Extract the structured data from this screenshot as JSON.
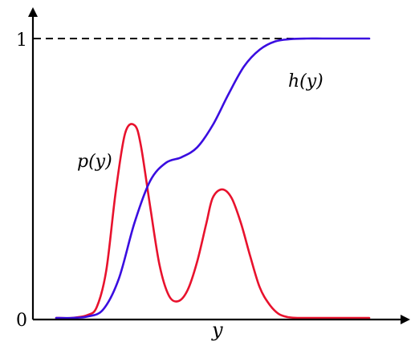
{
  "chart_data": {
    "type": "line",
    "title": "",
    "xlabel": "y",
    "ylabel": "",
    "y_ticks": [
      "0",
      "1"
    ],
    "ylim": [
      0,
      1.0
    ],
    "grid": false,
    "reference_line": {
      "y": 1,
      "style": "dashed",
      "color": "#000000"
    },
    "series": [
      {
        "name": "p(y)",
        "color": "#e8122d",
        "kind": "density",
        "x": [
          0.0,
          0.05,
          0.1,
          0.13,
          0.16,
          0.19,
          0.22,
          0.25,
          0.27,
          0.3,
          0.33,
          0.36,
          0.39,
          0.42,
          0.45,
          0.48,
          0.5,
          0.53,
          0.56,
          0.59,
          0.62,
          0.65,
          0.68,
          0.71,
          0.74,
          0.77,
          0.8,
          0.85,
          0.9,
          0.95,
          1.0
        ],
        "values": [
          0.0,
          0.0,
          0.01,
          0.04,
          0.17,
          0.45,
          0.66,
          0.69,
          0.62,
          0.4,
          0.19,
          0.08,
          0.06,
          0.1,
          0.2,
          0.34,
          0.43,
          0.46,
          0.43,
          0.34,
          0.22,
          0.11,
          0.05,
          0.015,
          0.003,
          0.0,
          0.0,
          0.0,
          0.0,
          0.0,
          0.0
        ]
      },
      {
        "name": "h(y)",
        "color": "#3a0de0",
        "kind": "cumulative",
        "x": [
          0.0,
          0.05,
          0.1,
          0.15,
          0.2,
          0.25,
          0.3,
          0.35,
          0.4,
          0.45,
          0.5,
          0.55,
          0.6,
          0.65,
          0.7,
          0.75,
          0.8,
          0.85,
          0.9,
          0.95,
          1.0
        ],
        "values": [
          0.0,
          0.0,
          0.005,
          0.03,
          0.14,
          0.34,
          0.49,
          0.555,
          0.575,
          0.61,
          0.69,
          0.8,
          0.9,
          0.96,
          0.99,
          0.998,
          1.0,
          1.0,
          1.0,
          1.0,
          1.0
        ]
      }
    ]
  }
}
